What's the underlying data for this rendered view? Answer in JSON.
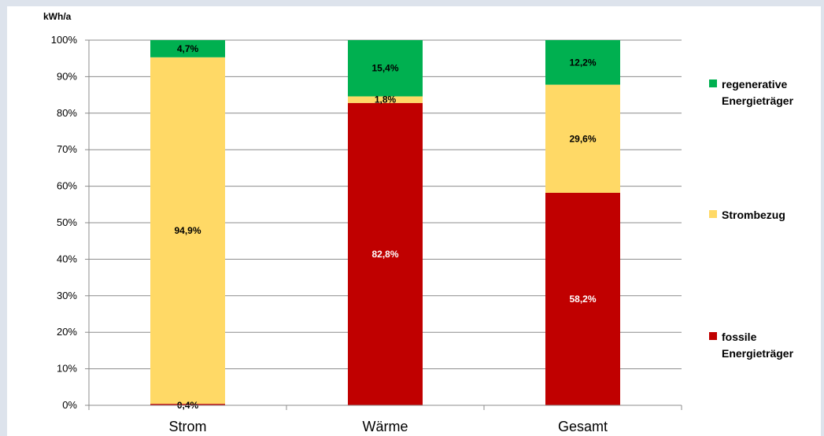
{
  "chart_data": {
    "type": "bar",
    "stacked": true,
    "unit_label": "kWh/a",
    "categories": [
      "Strom",
      "Wärme",
      "Gesamt"
    ],
    "yticks": [
      "0%",
      "10%",
      "20%",
      "30%",
      "40%",
      "50%",
      "60%",
      "70%",
      "80%",
      "90%",
      "100%"
    ],
    "ylim": [
      0,
      100
    ],
    "grid": true,
    "legend_position": "right",
    "series": [
      {
        "name": "fossile Energieträger",
        "legend_lines": [
          "fossile",
          "Energieträger"
        ],
        "color": "#c00000",
        "values": [
          0.4,
          82.8,
          58.2
        ],
        "labels": [
          "0,4%",
          "82,8%",
          "58,2%"
        ],
        "label_color": "#ffffff"
      },
      {
        "name": "Strombezug",
        "legend_lines": [
          "Strombezug"
        ],
        "color": "#ffd966",
        "values": [
          94.9,
          1.8,
          29.6
        ],
        "labels": [
          "94,9%",
          "1,8%",
          "29,6%"
        ],
        "label_color": "#000000"
      },
      {
        "name": "regenerative Energieträger",
        "legend_lines": [
          "regenerative",
          "Energieträger"
        ],
        "color": "#00b050",
        "values": [
          4.7,
          15.4,
          12.2
        ],
        "labels": [
          "4,7%",
          "15,4%",
          "12,2%"
        ],
        "label_color": "#000000"
      }
    ]
  }
}
